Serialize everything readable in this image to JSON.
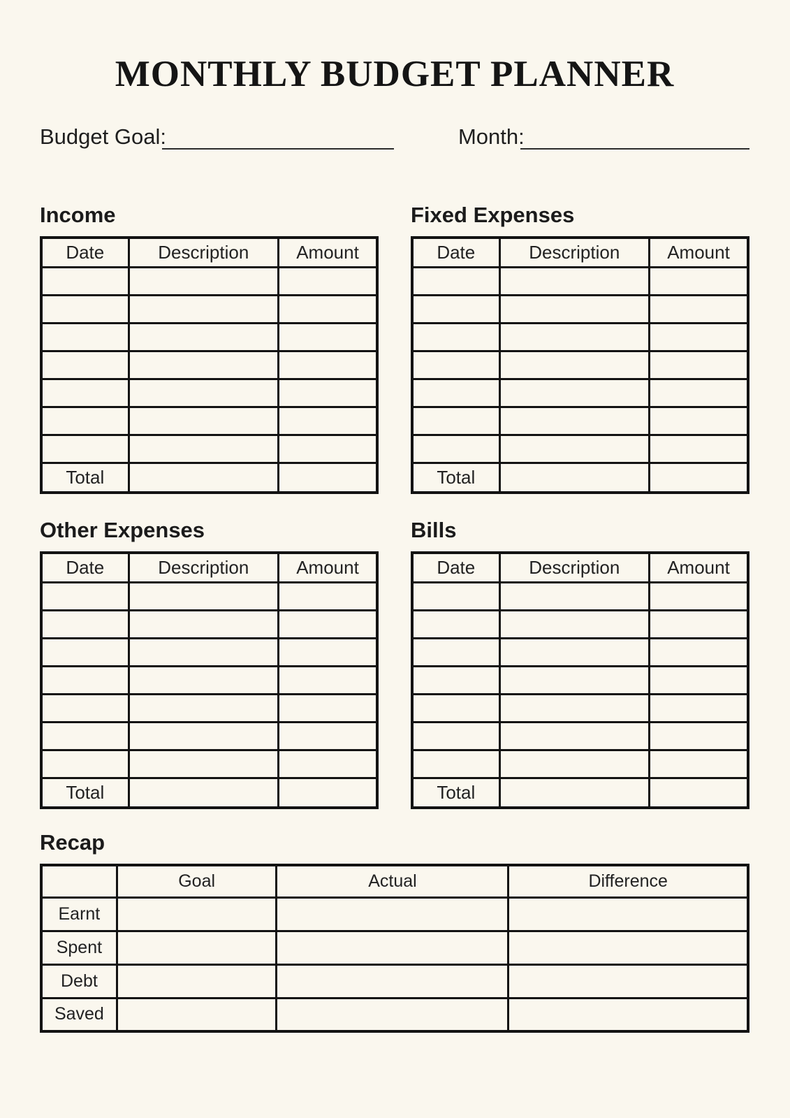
{
  "header": {
    "title": "MONTHLY BUDGET PLANNER",
    "budget_goal_label": "Budget Goal:",
    "month_label": "Month:",
    "budget_goal_value": "",
    "month_value": ""
  },
  "sections": [
    {
      "title": "Income"
    },
    {
      "title": "Fixed Expenses"
    },
    {
      "title": "Other Expenses"
    },
    {
      "title": "Bills"
    }
  ],
  "entry_table": {
    "columns": [
      "Date",
      "Description",
      "Amount"
    ],
    "total_label": "Total",
    "empty_row_count": 7
  },
  "recap": {
    "title": "Recap",
    "columns": [
      "",
      "Goal",
      "Actual",
      "Difference"
    ],
    "rows": [
      "Earnt",
      "Spent",
      "Debt",
      "Saved"
    ]
  },
  "colors": {
    "background": "#faf7ee",
    "ink": "#1a1a1a",
    "table_border": "#131313"
  }
}
